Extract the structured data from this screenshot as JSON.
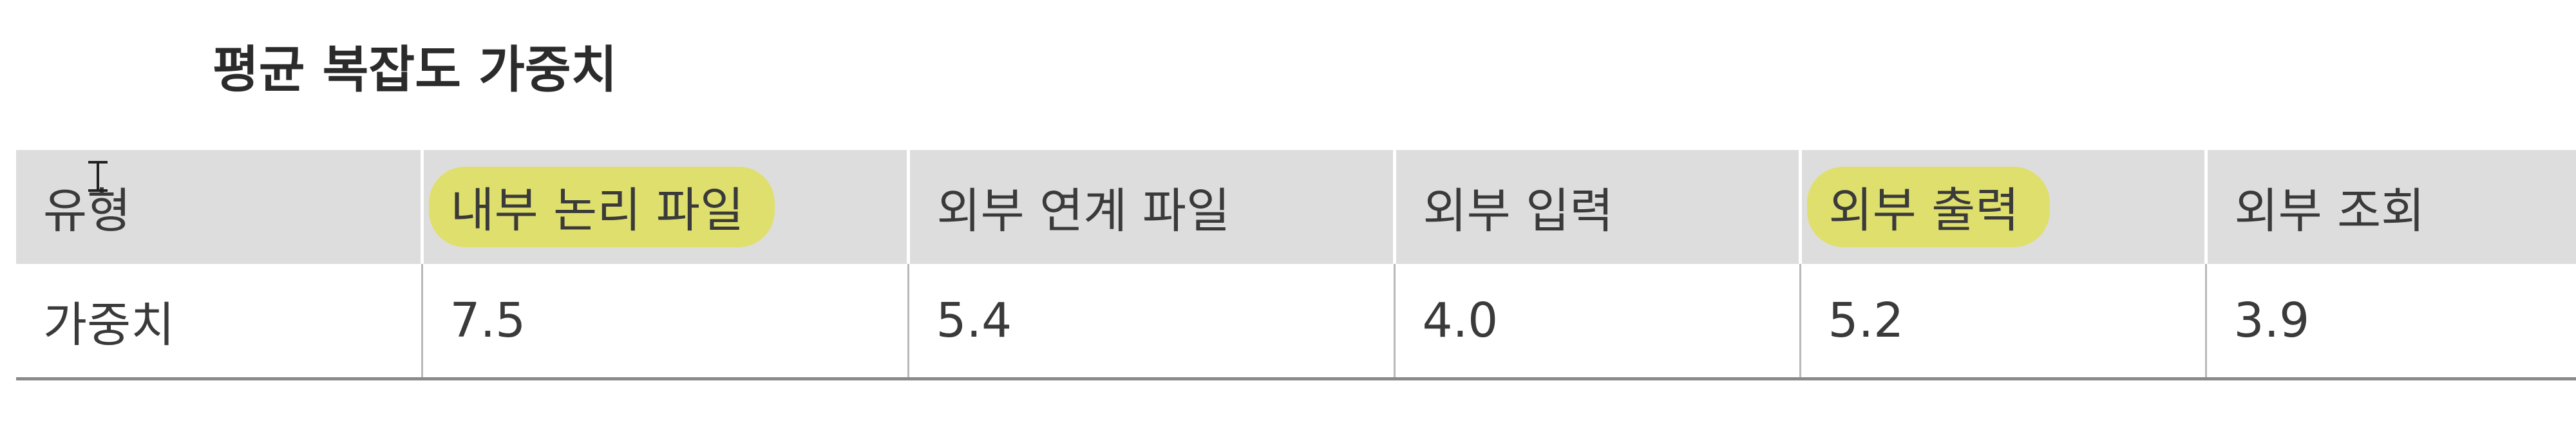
{
  "title": "평균 복잡도 가중치",
  "table": {
    "header": [
      "유형",
      "내부 논리 파일",
      "외부 연계 파일",
      "외부 입력",
      "외부 출력",
      "외부 조회"
    ],
    "rows": [
      [
        "가중치",
        "7.5",
        "5.4",
        "4.0",
        "5.2",
        "3.9"
      ]
    ]
  },
  "highlight_color": "#dfdf6e",
  "header_background": "#dddddd",
  "icons": {
    "cursor": "text-cursor-icon"
  }
}
